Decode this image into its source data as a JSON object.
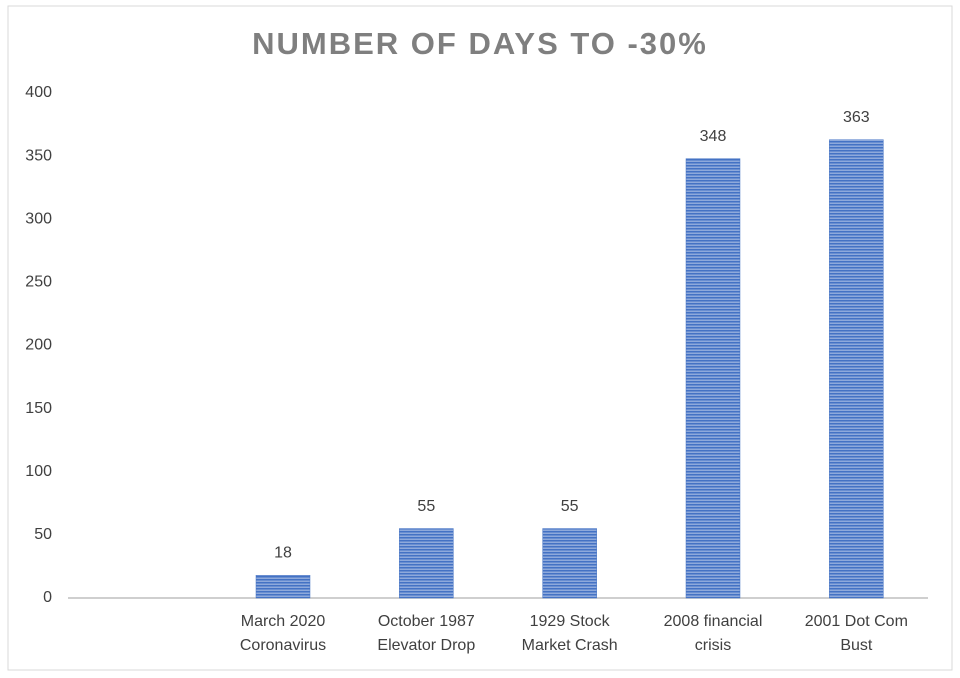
{
  "chart_data": {
    "type": "bar",
    "title": "NUMBER OF DAYS TO -30%",
    "categories": [
      null,
      "March 2020 Coronavirus",
      "October 1987 Elevator Drop",
      "1929 Stock Market Crash",
      "2008 financial crisis",
      "2001 Dot Com Bust"
    ],
    "values": [
      null,
      18,
      55,
      55,
      348,
      363
    ],
    "color": "#4472c4",
    "ylim": [
      0,
      400
    ],
    "yticks": [
      0,
      50,
      100,
      150,
      200,
      250,
      300,
      350,
      400
    ],
    "grid": false
  }
}
